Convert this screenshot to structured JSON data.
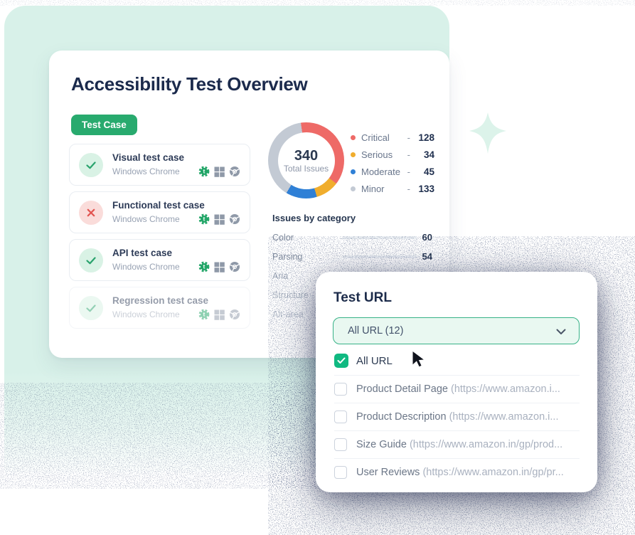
{
  "colors": {
    "mint": "#d8f1e9",
    "button_green": "#28aa6e",
    "checkbox_green": "#10b981",
    "navy": "#1b2a4c",
    "bar_green": "#14b17c",
    "critical": "#ee6a67",
    "serious": "#f0ad2d",
    "moderate": "#2f80d6",
    "minor": "#c3cad4"
  },
  "overview": {
    "title": "Accessibility Test Overview",
    "test_case_button": "Test Case",
    "test_cases": [
      {
        "name": "Visual test case",
        "env": "Windows Chrome",
        "status": "pass",
        "disabled": false
      },
      {
        "name": "Functional test case",
        "env": "Windows Chrome",
        "status": "fail",
        "disabled": false
      },
      {
        "name": "API test case",
        "env": "Windows Chrome",
        "status": "pass",
        "disabled": false
      },
      {
        "name": "Regression test case",
        "env": "Windows Chrome",
        "status": "pass",
        "disabled": true
      }
    ],
    "donut": {
      "total": "340",
      "total_label": "Total Issues",
      "start_angle_deg": -8,
      "legend": [
        {
          "label": "Critical",
          "dash": "-",
          "value": "128",
          "color": "#ee6a67"
        },
        {
          "label": "Serious",
          "dash": "-",
          "value": "34",
          "color": "#f0ad2d"
        },
        {
          "label": "Moderate",
          "dash": "-",
          "value": "45",
          "color": "#2f80d6"
        },
        {
          "label": "Minor",
          "dash": "-",
          "value": "133",
          "color": "#c3cad4"
        }
      ]
    },
    "categories": {
      "heading": "Issues by category",
      "rows": [
        {
          "label": "Color",
          "value": "60",
          "pct": 100,
          "bar_visible": true
        },
        {
          "label": "Parsing",
          "value": "54",
          "pct": 90,
          "bar_visible": true
        },
        {
          "label": "Aria",
          "value": "",
          "pct": 0,
          "bar_visible": false
        },
        {
          "label": "Structure",
          "value": "",
          "pct": 0,
          "bar_visible": false
        },
        {
          "label": "Alt-area",
          "value": "",
          "pct": 0,
          "bar_visible": false
        }
      ]
    }
  },
  "url_panel": {
    "heading": "Test URL",
    "dropdown_value": "All URL (12)",
    "select_all": {
      "label": "All URL",
      "checked": true
    },
    "items": [
      {
        "name": "Product Detail Page",
        "url": "(https://www.amazon.i..."
      },
      {
        "name": "Product Description",
        "url": "(https://www.amazon.i..."
      },
      {
        "name": "Size Guide",
        "url": "(https://www.amazon.in/gp/prod..."
      },
      {
        "name": "User Reviews",
        "url": "(https://www.amazon.in/gp/pr..."
      }
    ]
  },
  "chart_data": [
    {
      "type": "pie",
      "title": "Total Issues",
      "labels": [
        "Critical",
        "Serious",
        "Moderate",
        "Minor"
      ],
      "values": [
        128,
        34,
        45,
        133
      ],
      "colors": [
        "#ee6a67",
        "#f0ad2d",
        "#2f80d6",
        "#c3cad4"
      ],
      "center_total": 340,
      "center_label": "Total Issues",
      "legend_position": "right",
      "donut": true
    },
    {
      "type": "bar",
      "title": "Issues by category",
      "categories": [
        "Color",
        "Parsing",
        "Aria",
        "Structure",
        "Alt-area"
      ],
      "values": [
        60,
        54,
        null,
        null,
        null
      ],
      "xlim": [
        0,
        60
      ],
      "note": "Aria, Structure and Alt-area bars are hidden behind the Test URL panel"
    }
  ]
}
